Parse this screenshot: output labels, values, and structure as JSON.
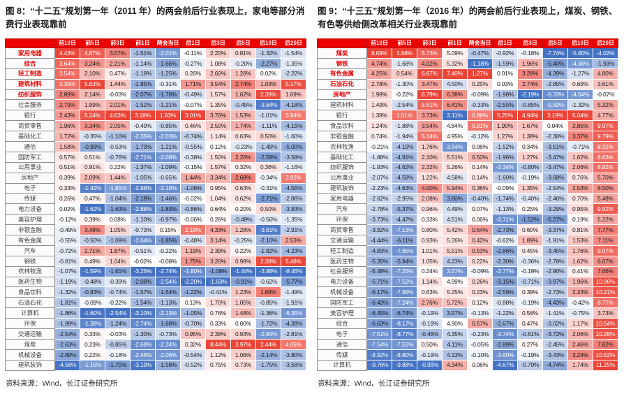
{
  "colors": {
    "header_bg": "#ee0000",
    "header_text": "#ffffff",
    "heat_red": "#ec4538",
    "heat_blue": "#4472c4",
    "highlight_name_text": "#e60000",
    "white_text_threshold": 0.7
  },
  "chart_data": [
    {
      "type": "heatmap",
      "title": "图 8：“十二五”规划第一年（2011 年）的两会前后行业表现上，家电等部分消费行业表现靠前",
      "source": "资料来源：Wind，长江证券研究所",
      "value_unit": "%",
      "columns": [
        "前10日",
        "前5日",
        "前3日",
        "前1日",
        "两会当日",
        "后1日",
        "后3日",
        "后5日",
        "后10日",
        "后20日"
      ],
      "red_top_rows": 5,
      "overrides": [],
      "rows": [
        {
          "name": "家用电器",
          "values": [
            4.43,
            4.87,
            3.07,
            -1.51,
            -2.01,
            -0.11,
            2.2,
            0.81,
            -1.32,
            -1.54
          ]
        },
        {
          "name": "综合",
          "values": [
            3.64,
            3.24,
            2.21,
            -1.14,
            -1.66,
            -0.27,
            1.08,
            -0.2,
            -2.27,
            -1.35
          ]
        },
        {
          "name": "轻工制造",
          "values": [
            3.54,
            2.1,
            0.47,
            -1.18,
            -1.25,
            0.26,
            2.6,
            1.28,
            0.02,
            -2.22
          ]
        },
        {
          "name": "建筑材料",
          "values": [
            3.39,
            5.63,
            1.44,
            -1.85,
            -0.31,
            1.71,
            3.54,
            2.74,
            1.03,
            5.17
          ]
        },
        {
          "name": "纺织服饰",
          "values": [
            2.89,
            2.14,
            -0.03,
            -2.07,
            -1.78,
            -0.49,
            1.57,
            1.62,
            2.39,
            1.69
          ]
        },
        {
          "name": "社会服务",
          "values": [
            2.79,
            1.99,
            2.01,
            -1.52,
            -1.21,
            -0.07,
            1.35,
            -0.45,
            -3.64,
            -4.18
          ]
        },
        {
          "name": "银行",
          "values": [
            2.43,
            5.24,
            4.63,
            3.18,
            1.93,
            3.01,
            3.76,
            1.53,
            -1.01,
            3.94
          ]
        },
        {
          "name": "商贸零售",
          "values": [
            1.96,
            3.34,
            2.05,
            -0.49,
            -0.85,
            0.46,
            2.5,
            1.74,
            -1.11,
            -4.15
          ]
        },
        {
          "name": "基础化工",
          "values": [
            1.72,
            -0.35,
            -1.1,
            -2.35,
            -2.03,
            -0.74,
            1.14,
            0.63,
            0.5,
            -1.6
          ]
        },
        {
          "name": "通信",
          "values": [
            1.58,
            -0.99,
            -0.53,
            -1.73,
            -1.21,
            -0.55,
            0.12,
            -0.23,
            -1.49,
            -5.0
          ]
        },
        {
          "name": "国防军工",
          "values": [
            0.57,
            0.51,
            -0.76,
            -2.71,
            -2.08,
            -0.38,
            1.5,
            2.26,
            -2.59,
            -3.58
          ]
        },
        {
          "name": "公用事业",
          "values": [
            0.51,
            0.91,
            0.22,
            -1.37,
            -1.09,
            -0.15,
            1.57,
            0.32,
            0.36,
            -1.16
          ]
        },
        {
          "name": "房地产",
          "values": [
            0.39,
            2.09,
            1.44,
            -1.05,
            -0.65,
            1.44,
            3.34,
            2.68,
            -0.34,
            3.92
          ]
        },
        {
          "name": "电子",
          "values": [
            0.33,
            -1.42,
            -1.81,
            -2.98,
            -2.19,
            -1.06,
            0.95,
            0.63,
            -0.31,
            -4.55
          ]
        },
        {
          "name": "传媒",
          "values": [
            0.26,
            0.47,
            -1.04,
            -2.18,
            -1.46,
            -0.02,
            1.04,
            0.62,
            -2.71,
            -2.86
          ]
        },
        {
          "name": "电力设备",
          "values": [
            0.02,
            -1.62,
            -1.63,
            -2.88,
            -1.83,
            -0.86,
            0.64,
            0.2,
            0.5,
            -3.83
          ]
        },
        {
          "name": "美容护理",
          "values": [
            -0.12,
            0.39,
            0.08,
            -1.1,
            -0.97,
            -0.06,
            0.26,
            -0.49,
            -0.56,
            -1.35
          ]
        },
        {
          "name": "非银金融",
          "values": [
            -0.49,
            3.48,
            1.05,
            -0.73,
            0.15,
            2.19,
            4.33,
            1.28,
            -3.61,
            -2.91
          ]
        },
        {
          "name": "有色金属",
          "values": [
            -0.55,
            -0.5,
            -1.09,
            -2.64,
            -1.85,
            -0.48,
            3.14,
            -0.25,
            -2.1,
            2.53
          ]
        },
        {
          "name": "汽车",
          "values": [
            -0.72,
            2.71,
            1.87,
            -0.51,
            -0.22,
            1.19,
            2.39,
            0.22,
            -1.82,
            -4.23
          ]
        },
        {
          "name": "钢铁",
          "values": [
            -0.81,
            0.49,
            1.04,
            -0.02,
            -0.08,
            1.75,
            3.2,
            0.98,
            2.38,
            5.48
          ]
        },
        {
          "name": "农林牧渔",
          "values": [
            -1.07,
            -1.59,
            -1.61,
            -3.26,
            -2.74,
            -1.8,
            -1.08,
            -1.44,
            -3.88,
            -8.46
          ]
        },
        {
          "name": "医药生物",
          "values": [
            -1.19,
            -0.48,
            -0.39,
            -2.08,
            -2.54,
            -2.2,
            -1.63,
            -0.91,
            -0.62,
            -5.77
          ]
        },
        {
          "name": "食品饮料",
          "values": [
            -1.32,
            -0.83,
            -0.74,
            -1.57,
            -1.64,
            -1.22,
            -0.41,
            1.23,
            1.69,
            -1.49
          ]
        },
        {
          "name": "石油石化",
          "values": [
            -1.81,
            -0.09,
            -0.22,
            -1.54,
            -1.13,
            0.13,
            1.7,
            1.05,
            -0.85,
            -1.91
          ]
        },
        {
          "name": "计算机",
          "values": [
            -1.86,
            -1.6,
            -2.54,
            -3.1,
            -2.13,
            -1.05,
            0.76,
            1.48,
            -1.36,
            -6.35
          ]
        },
        {
          "name": "环保",
          "values": [
            -1.99,
            -1.38,
            -1.24,
            -2.74,
            -1.68,
            -0.7,
            0.33,
            0.0,
            -1.72,
            -4.39
          ]
        },
        {
          "name": "交通运输",
          "values": [
            -2.54,
            0.33,
            -0.03,
            -1.3,
            -0.73,
            0.95,
            2.38,
            0.93,
            -2.84,
            -2.81
          ]
        },
        {
          "name": "煤炭",
          "values": [
            -2.63,
            0.23,
            -0.85,
            -2.68,
            -2.24,
            0.32,
            8.44,
            3.97,
            2.44,
            4.05
          ]
        },
        {
          "name": "机械设备",
          "values": [
            -2.89,
            0.22,
            -0.18,
            -2.48,
            -2.06,
            -0.54,
            1.12,
            1.06,
            -2.14,
            -3.8
          ]
        },
        {
          "name": "建筑装饰",
          "values": [
            -4.56,
            -1.16,
            -1.75,
            -3.19,
            -1.58,
            -0.52,
            0.75,
            0.73,
            -1.75,
            -3.56
          ]
        }
      ]
    },
    {
      "type": "heatmap",
      "title": "图 9：“十三五”规划第一年（2016 年）的两会前后行业表现上，煤炭、钢铁、有色等供给侧改革相关行业表现靠前",
      "source": "资料来源：Wind，长江证券研究所",
      "value_unit": "%",
      "columns": [
        "前10日",
        "前5日",
        "前3日",
        "前1日",
        "两会当日",
        "后1日",
        "后3日",
        "后5日",
        "后10日",
        "后20日"
      ],
      "red_top_rows": 5,
      "overrides": [
        {
          "row": 30,
          "col": 3,
          "t": 0.45
        }
      ],
      "rows": [
        {
          "name": "煤炭",
          "values": [
            8.69,
            1.98,
            5.73,
            5.09,
            -0.47,
            -0.92,
            -0.18,
            -7.74,
            -5.6,
            -4.02
          ]
        },
        {
          "name": "钢铁",
          "values": [
            4.74,
            -1.68,
            4.02,
            5.32,
            -1.18,
            -1.59,
            1.96,
            -5.4,
            -4.06,
            -1.93
          ]
        },
        {
          "name": "有色金属",
          "values": [
            4.25,
            0.54,
            6.67,
            7.4,
            1.27,
            0.01,
            3.28,
            -4.39,
            -1.27,
            4.8
          ]
        },
        {
          "name": "石油石化",
          "values": [
            2.78,
            -1.3,
            3.47,
            4.5,
            0.25,
            0.03,
            2.74,
            -2.85,
            0.69,
            3.61
          ]
        },
        {
          "name": "房地产",
          "values": [
            1.98,
            -0.22,
            6.79,
            6.38,
            -0.09,
            -1.98,
            -2.19,
            -6.33,
            -4.04,
            -0.07
          ]
        },
        {
          "name": "建筑材料",
          "values": [
            1.49,
            -2.54,
            5.61,
            6.41,
            -0.33,
            -2.55,
            -0.85,
            -5.5,
            -1.32,
            5.32
          ]
        },
        {
          "name": "银行",
          "values": [
            1.38,
            1.51,
            3.73,
            3.11,
            0.89,
            5.25,
            4.94,
            3.19,
            5.04,
            4.77
          ]
        },
        {
          "name": "食品饮料",
          "values": [
            1.24,
            -1.88,
            3.54,
            4.84,
            0.91,
            1.9,
            1.67,
            0.04,
            2.85,
            9.97
          ]
        },
        {
          "name": "非银金融",
          "values": [
            0.74,
            -1.94,
            5.14,
            4.95,
            -0.12,
            1.27,
            1.38,
            -2.3,
            3.37,
            9.79
          ]
        },
        {
          "name": "农林牧渔",
          "values": [
            -0.21,
            -4.19,
            1.76,
            3.54,
            0.06,
            -1.52,
            0.34,
            -3.51,
            -0.71,
            8.32
          ]
        },
        {
          "name": "基础化工",
          "values": [
            -1.88,
            -4.91,
            2.1,
            5.51,
            0.5,
            -1.96,
            1.27,
            -3.47,
            1.62,
            8.63
          ]
        },
        {
          "name": "纺织服饰",
          "values": [
            -1.93,
            -4.62,
            2.32,
            5.26,
            0.14,
            -3.34,
            -0.8,
            -3.47,
            2.06,
            8.82
          ]
        },
        {
          "name": "公用事业",
          "values": [
            -2.07,
            -4.58,
            1.22,
            4.58,
            0.14,
            -1.6,
            -0.19,
            -3.68,
            0.76,
            5.7
          ]
        },
        {
          "name": "建筑装饰",
          "values": [
            -2.23,
            -4.63,
            4.0,
            5.94,
            0.36,
            -0.09,
            1.35,
            -2.54,
            2.53,
            6.5
          ]
        },
        {
          "name": "家用电器",
          "values": [
            -2.62,
            -2.95,
            2.08,
            3.8,
            -0.4,
            -1.74,
            -0.4,
            -2.46,
            0.7,
            5.48
          ]
        },
        {
          "name": "汽车",
          "values": [
            -2.78,
            -5.37,
            0.96,
            4.49,
            0.07,
            -1.13,
            0.25,
            -3.29,
            0.95,
            9.92
          ]
        },
        {
          "name": "环保",
          "values": [
            -3.73,
            -4.47,
            0.33,
            4.51,
            0.06,
            -3.71,
            -1.52,
            -5.27,
            0.19,
            5.22
          ]
        },
        {
          "name": "商贸零售",
          "values": [
            -3.92,
            -7.13,
            0.8,
            5.42,
            0.64,
            -2.73,
            0.6,
            -3.37,
            0.81,
            7.77
          ]
        },
        {
          "name": "交通运输",
          "values": [
            -4.44,
            -6.11,
            0.93,
            5.26,
            0.42,
            -0.62,
            1.89,
            -1.91,
            1.53,
            7.11
          ]
        },
        {
          "name": "轻工制造",
          "values": [
            -4.83,
            -7.65,
            1.01,
            5.51,
            0.53,
            -2.86,
            0.45,
            -3.45,
            1.76,
            9.07
          ]
        },
        {
          "name": "医药生物",
          "values": [
            -5.35,
            -5.94,
            1.05,
            4.23,
            0.22,
            -2.3,
            -0.36,
            -2.78,
            1.62,
            6.67
          ]
        },
        {
          "name": "社会服务",
          "values": [
            -5.49,
            -7.25,
            0.24,
            3.57,
            -0.09,
            -3.77,
            -0.19,
            -2.9,
            0.41,
            7.66
          ]
        },
        {
          "name": "电力设备",
          "values": [
            -5.71,
            -7.52,
            1.14,
            4.99,
            0.26,
            -3.15,
            -0.71,
            -3.97,
            1.96,
            10.96
          ]
        },
        {
          "name": "机械设备",
          "values": [
            -6.17,
            -7.99,
            0.63,
            5.25,
            0.23,
            -2.59,
            0.39,
            -2.73,
            2.33,
            10.21
          ]
        },
        {
          "name": "国防军工",
          "values": [
            -6.43,
            -7.24,
            2.76,
            5.72,
            0.12,
            -0.88,
            -0.19,
            -4.43,
            -0.42,
            8.77
          ]
        },
        {
          "name": "美容护理",
          "values": [
            -6.45,
            -6.74,
            -0.19,
            3.97,
            -0.13,
            -1.22,
            0.56,
            -1.41,
            -0.75,
            3.73
          ]
        },
        {
          "name": "综合",
          "values": [
            -6.63,
            -8.17,
            -0.19,
            4.9,
            0.57,
            -2.67,
            0.47,
            -3.02,
            1.17,
            10.54
          ]
        },
        {
          "name": "电子",
          "values": [
            -7.51,
            -8.77,
            -0.46,
            4.35,
            -0.23,
            -3.74,
            -0.81,
            -3.72,
            2.06,
            10.28
          ]
        },
        {
          "name": "通信",
          "values": [
            -7.54,
            -7.51,
            0.5,
            4.11,
            -0.05,
            -2.89,
            0.27,
            -2.45,
            2.46,
            7.82
          ]
        },
        {
          "name": "传媒",
          "values": [
            -8.92,
            -8.8,
            -0.19,
            4.13,
            -0.1,
            -3.6,
            -0.19,
            -3.43,
            3.24,
            10.52
          ]
        },
        {
          "name": "计算机",
          "values": [
            -9.76,
            -9.88,
            -0.99,
            4.34,
            0.06,
            -4.67,
            -0.79,
            -4.74,
            1.74,
            11.25
          ]
        }
      ]
    }
  ]
}
